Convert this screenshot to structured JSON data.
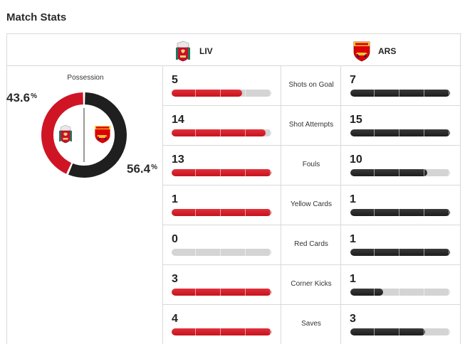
{
  "title": "Match Stats",
  "teams": {
    "home": {
      "abbr": "LIV",
      "color": "#c8102e",
      "crest": "liverpool-crest-icon"
    },
    "away": {
      "abbr": "ARS",
      "color": "#1f1f1f",
      "crest": "arsenal-crest-icon"
    }
  },
  "possession": {
    "label": "Possession",
    "home_value": 43.6,
    "away_value": 56.4,
    "home_text": "43.6",
    "away_text": "56.4",
    "unit": "%"
  },
  "stats": [
    {
      "label": "Shots on Goal",
      "home": 5,
      "away": 7,
      "home_fill": 0.71,
      "away_fill": 1.0
    },
    {
      "label": "Shot Attempts",
      "home": 14,
      "away": 15,
      "home_fill": 0.94,
      "away_fill": 1.0
    },
    {
      "label": "Fouls",
      "home": 13,
      "away": 10,
      "home_fill": 1.0,
      "away_fill": 0.77
    },
    {
      "label": "Yellow Cards",
      "home": 1,
      "away": 1,
      "home_fill": 1.0,
      "away_fill": 1.0
    },
    {
      "label": "Red Cards",
      "home": 0,
      "away": 1,
      "home_fill": 0.0,
      "away_fill": 1.0
    },
    {
      "label": "Corner Kicks",
      "home": 3,
      "away": 1,
      "home_fill": 1.0,
      "away_fill": 0.33
    },
    {
      "label": "Saves",
      "home": 4,
      "away": 3,
      "home_fill": 1.0,
      "away_fill": 0.75
    }
  ]
}
